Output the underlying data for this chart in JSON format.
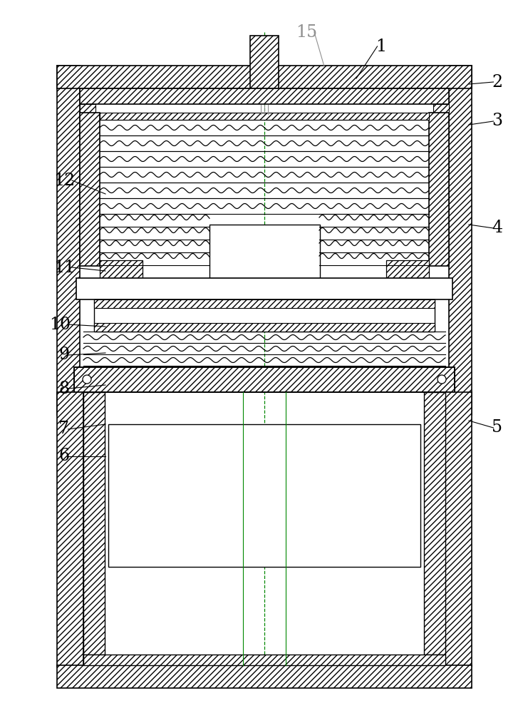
{
  "bg_color": "#ffffff",
  "lc": "#000000",
  "green": "#008800",
  "gray": "#909090",
  "figsize": [
    7.41,
    10.0
  ],
  "dpi": 100
}
